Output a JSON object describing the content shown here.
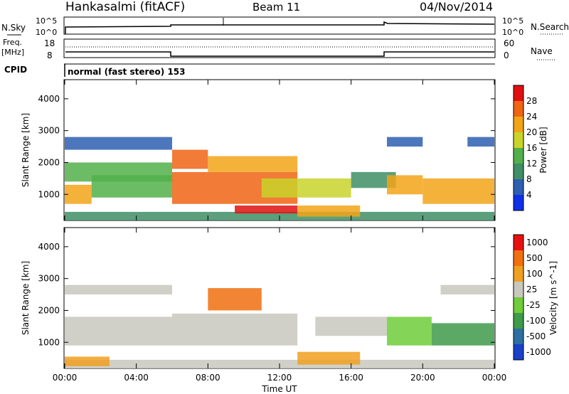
{
  "header": {
    "station": "Hankasalmi (fitACF)",
    "beam": "Beam 11",
    "date": "04/Nov/2014"
  },
  "strip_labels": {
    "nsky": "N.Sky",
    "nsky_tick_top": "10^5",
    "nsky_tick_bottom": "10^0",
    "nsearch": "N.Search",
    "nsearch_tick_top": "10^5",
    "nsearch_tick_bottom": "10^0",
    "freq": "Freq.",
    "freq_unit": "[MHz]",
    "freq_tick_top": "18",
    "freq_tick_bottom": "8",
    "nave": "Nave",
    "nave_tick_top": "60",
    "nave_tick_bottom": "0",
    "cpid": "CPID",
    "cpid_text": "normal (fast stereo) 153"
  },
  "chart_data": {
    "type": "heatmap",
    "x_label": "Time UT",
    "x_ticks": [
      "00:00",
      "04:00",
      "08:00",
      "12:00",
      "16:00",
      "20:00",
      "00:00"
    ],
    "x_range_hours": [
      0,
      24
    ],
    "y_label": "Slant Range [km]",
    "y_ticks": [
      1000,
      2000,
      3000,
      4000
    ],
    "y_range_km": [
      180,
      4600
    ],
    "panels": [
      {
        "name": "power",
        "colorbar_label": "Power [dB]",
        "colorbar_ticks": [
          "4",
          "8",
          "12",
          "16",
          "20",
          "24",
          "28"
        ],
        "colors": [
          "#1030e8",
          "#2e5fb0",
          "#3f8e66",
          "#52b04a",
          "#c9d42a",
          "#f2a417",
          "#f06414",
          "#e01010"
        ],
        "bands": [
          {
            "t0": 0.0,
            "t1": 24.0,
            "r0": 180,
            "r1": 450,
            "level": 2
          },
          {
            "t0": 0.0,
            "t1": 1.5,
            "r0": 700,
            "r1": 1300,
            "level": 5
          },
          {
            "t0": 1.5,
            "t1": 6.0,
            "r0": 900,
            "r1": 1600,
            "level": 3
          },
          {
            "t0": 0.0,
            "t1": 6.0,
            "r0": 1400,
            "r1": 2000,
            "level": 3
          },
          {
            "t0": 0.0,
            "t1": 6.0,
            "r0": 2400,
            "r1": 2800,
            "level": 1
          },
          {
            "t0": 6.0,
            "t1": 8.0,
            "r0": 1800,
            "r1": 2400,
            "level": 6
          },
          {
            "t0": 6.0,
            "t1": 13.0,
            "r0": 700,
            "r1": 1700,
            "level": 6
          },
          {
            "t0": 8.0,
            "t1": 13.0,
            "r0": 1700,
            "r1": 2200,
            "level": 5
          },
          {
            "t0": 9.5,
            "t1": 13.0,
            "r0": 400,
            "r1": 650,
            "level": 7
          },
          {
            "t0": 11.0,
            "t1": 16.0,
            "r0": 900,
            "r1": 1500,
            "level": 4
          },
          {
            "t0": 13.0,
            "t1": 16.5,
            "r0": 300,
            "r1": 650,
            "level": 5
          },
          {
            "t0": 16.0,
            "t1": 18.5,
            "r0": 1200,
            "r1": 1700,
            "level": 2
          },
          {
            "t0": 18.0,
            "t1": 20.0,
            "r0": 2500,
            "r1": 2800,
            "level": 1
          },
          {
            "t0": 18.0,
            "t1": 20.0,
            "r0": 1000,
            "r1": 1600,
            "level": 5
          },
          {
            "t0": 20.0,
            "t1": 24.0,
            "r0": 700,
            "r1": 1500,
            "level": 5
          },
          {
            "t0": 22.5,
            "t1": 24.0,
            "r0": 2500,
            "r1": 2800,
            "level": 1
          }
        ]
      },
      {
        "name": "velocity",
        "colorbar_label": "Velocity [m s^-1]",
        "colorbar_ticks": [
          "1000",
          "500",
          "100",
          "25",
          "-25",
          "-100",
          "-500",
          "-1000"
        ],
        "colors": [
          "#1a40c8",
          "#2d6fa0",
          "#3f9a4a",
          "#6fcc3a",
          "#c8c8be",
          "#f0a020",
          "#f07010",
          "#e81010"
        ],
        "bands": [
          {
            "t0": 0.0,
            "t1": 24.0,
            "r0": 180,
            "r1": 450,
            "level": 4
          },
          {
            "t0": 0.0,
            "t1": 2.5,
            "r0": 250,
            "r1": 550,
            "level": 5
          },
          {
            "t0": 0.0,
            "t1": 6.0,
            "r0": 900,
            "r1": 1800,
            "level": 4
          },
          {
            "t0": 0.0,
            "t1": 6.0,
            "r0": 2500,
            "r1": 2800,
            "level": 4
          },
          {
            "t0": 6.0,
            "t1": 13.0,
            "r0": 900,
            "r1": 1900,
            "level": 4
          },
          {
            "t0": 8.0,
            "t1": 11.0,
            "r0": 2000,
            "r1": 2700,
            "level": 6
          },
          {
            "t0": 13.0,
            "t1": 16.5,
            "r0": 300,
            "r1": 700,
            "level": 5
          },
          {
            "t0": 14.0,
            "t1": 18.0,
            "r0": 1200,
            "r1": 1800,
            "level": 4
          },
          {
            "t0": 18.0,
            "t1": 20.5,
            "r0": 900,
            "r1": 1800,
            "level": 3
          },
          {
            "t0": 20.5,
            "t1": 24.0,
            "r0": 900,
            "r1": 1600,
            "level": 2
          },
          {
            "t0": 21.0,
            "t1": 24.0,
            "r0": 2500,
            "r1": 2800,
            "level": 4
          }
        ]
      }
    ]
  }
}
